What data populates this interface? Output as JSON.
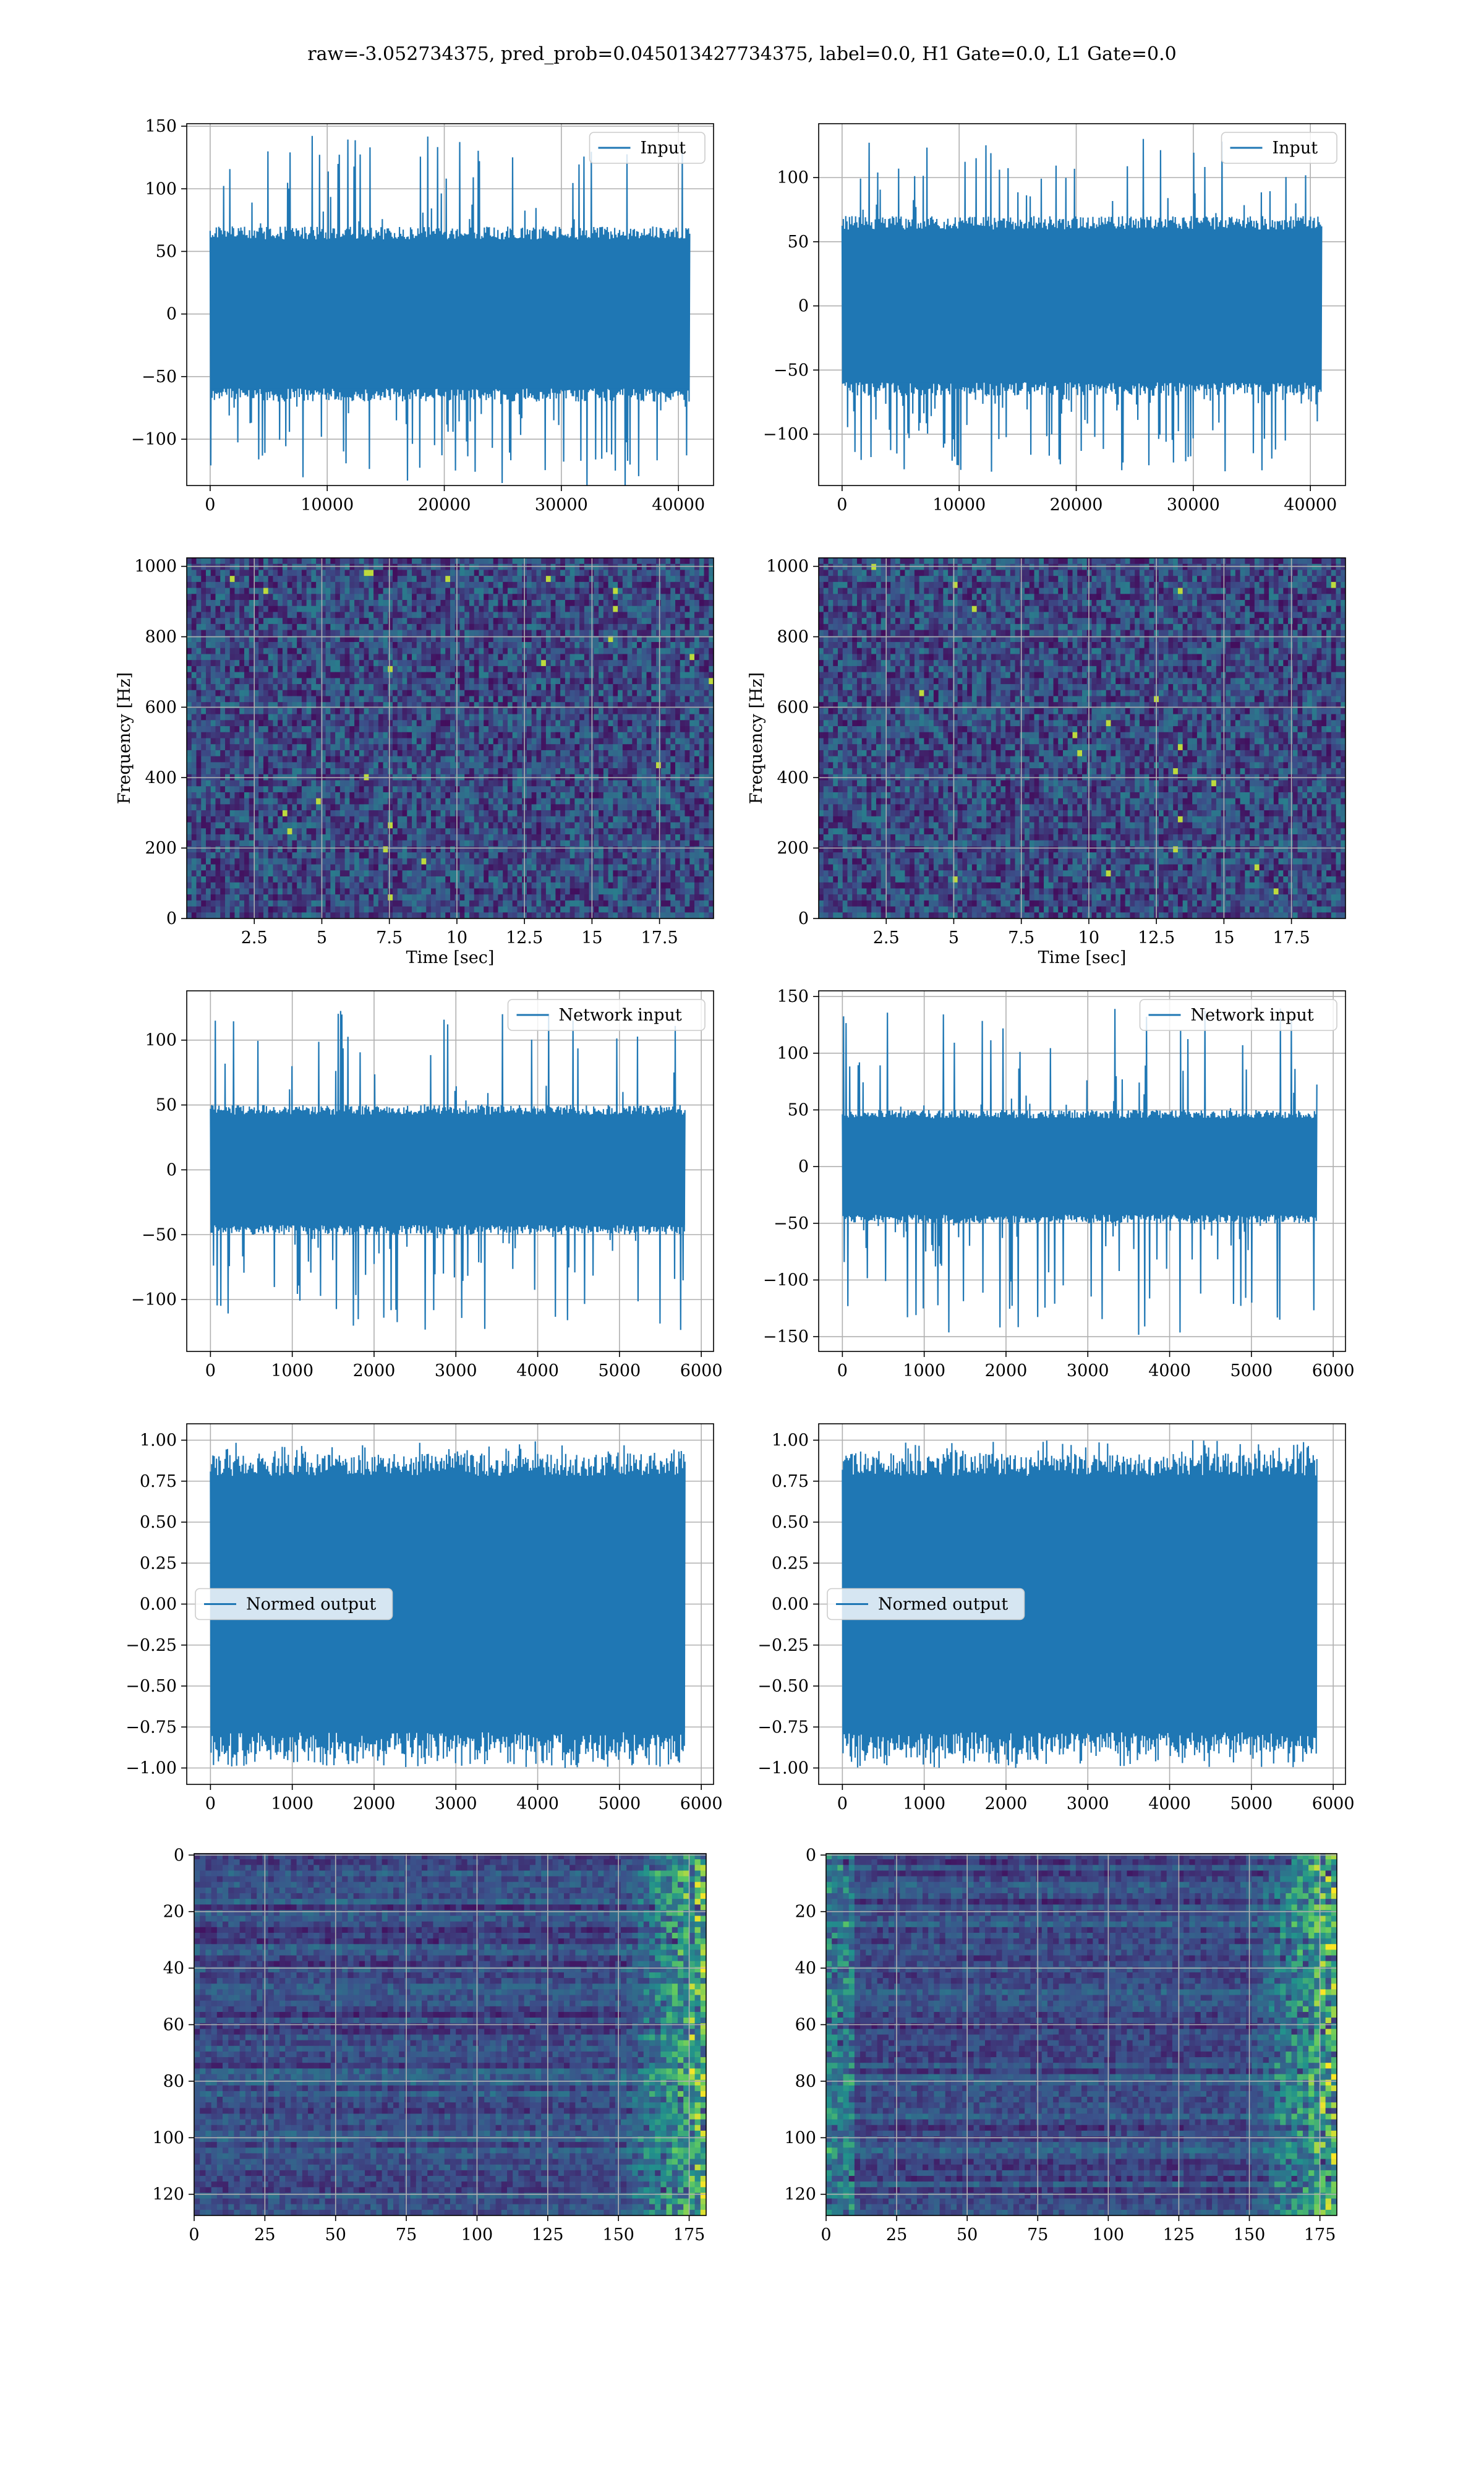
{
  "title": "raw=-3.052734375, pred_prob=0.045013427734375, label=0.0, H1 Gate=0.0, L1 Gate=0.0",
  "colors": {
    "series": "#1f77b4",
    "grid": "#b0b0b0",
    "axis": "#000000",
    "legend_bg": "#ffffff"
  },
  "chart_data": [
    {
      "id": "input-left",
      "type": "line",
      "series": [
        {
          "name": "Input"
        }
      ],
      "legend_loc": "upper-right",
      "x_ticks": [
        0,
        10000,
        20000,
        30000,
        40000
      ],
      "y_ticks": [
        -100,
        -50,
        0,
        50,
        100,
        150
      ],
      "xlim": [
        -2000,
        43000
      ],
      "ylim": [
        -137,
        152
      ],
      "signal": {
        "x_range": [
          0,
          40960
        ],
        "envelope": 70,
        "peak_max": 145,
        "peak_min": -125
      }
    },
    {
      "id": "input-right",
      "type": "line",
      "series": [
        {
          "name": "Input"
        }
      ],
      "legend_loc": "upper-right",
      "x_ticks": [
        0,
        10000,
        20000,
        30000,
        40000
      ],
      "y_ticks": [
        -100,
        -50,
        0,
        50,
        100
      ],
      "xlim": [
        -2000,
        43000
      ],
      "ylim": [
        -140,
        142
      ],
      "signal": {
        "x_range": [
          0,
          40960
        ],
        "envelope": 70,
        "peak_max": 133,
        "peak_min": -128
      }
    },
    {
      "id": "spectrogram-left",
      "type": "heatmap",
      "ylabel": "Frequency [Hz]",
      "xlabel": "Time [sec]",
      "x_ticks": [
        2.5,
        5.0,
        7.5,
        10.0,
        12.5,
        15.0,
        17.5
      ],
      "y_ticks": [
        0,
        200,
        400,
        600,
        800,
        1000
      ],
      "xlim": [
        0,
        19.5
      ],
      "ylim": [
        0,
        1024
      ],
      "colormap": "viridis"
    },
    {
      "id": "spectrogram-right",
      "type": "heatmap",
      "ylabel": "Frequency [Hz]",
      "xlabel": "Time [sec]",
      "x_ticks": [
        2.5,
        5.0,
        7.5,
        10.0,
        12.5,
        15.0,
        17.5
      ],
      "y_ticks": [
        0,
        200,
        400,
        600,
        800,
        1000
      ],
      "xlim": [
        0,
        19.5
      ],
      "ylim": [
        0,
        1024
      ],
      "colormap": "viridis"
    },
    {
      "id": "network-input-left",
      "type": "line",
      "series": [
        {
          "name": "Network input"
        }
      ],
      "legend_loc": "upper-right",
      "x_ticks": [
        0,
        1000,
        2000,
        3000,
        4000,
        5000,
        6000
      ],
      "y_ticks": [
        -100,
        -50,
        0,
        50,
        100
      ],
      "xlim": [
        -290,
        6150
      ],
      "ylim": [
        -140,
        138
      ],
      "signal": {
        "x_range": [
          0,
          5800
        ],
        "envelope": 50,
        "peak_max": 125,
        "peak_min": -125
      }
    },
    {
      "id": "network-input-right",
      "type": "line",
      "series": [
        {
          "name": "Network input"
        }
      ],
      "legend_loc": "upper-right",
      "x_ticks": [
        0,
        1000,
        2000,
        3000,
        4000,
        5000,
        6000
      ],
      "y_ticks": [
        -150,
        -100,
        -50,
        0,
        50,
        100,
        150
      ],
      "xlim": [
        -290,
        6150
      ],
      "ylim": [
        -163,
        155
      ],
      "signal": {
        "x_range": [
          0,
          5800
        ],
        "envelope": 50,
        "peak_max": 140,
        "peak_min": -150
      }
    },
    {
      "id": "normed-output-left",
      "type": "line",
      "series": [
        {
          "name": "Normed output"
        }
      ],
      "legend_loc": "center-left",
      "x_ticks": [
        0,
        1000,
        2000,
        3000,
        4000,
        5000,
        6000
      ],
      "y_ticks": [
        -1.0,
        -0.75,
        -0.5,
        -0.25,
        0.0,
        0.25,
        0.5,
        0.75,
        1.0
      ],
      "y_tick_labels": [
        "−1.00",
        "−0.75",
        "−0.50",
        "−0.25",
        "0.00",
        "0.25",
        "0.50",
        "0.75",
        "1.00"
      ],
      "xlim": [
        -290,
        6150
      ],
      "ylim": [
        -1.1,
        1.1
      ],
      "signal": {
        "x_range": [
          0,
          5800
        ],
        "envelope": 0.92,
        "peak_max": 1.0,
        "peak_min": -1.0
      }
    },
    {
      "id": "normed-output-right",
      "type": "line",
      "series": [
        {
          "name": "Normed output"
        }
      ],
      "legend_loc": "center-left",
      "x_ticks": [
        0,
        1000,
        2000,
        3000,
        4000,
        5000,
        6000
      ],
      "y_ticks": [
        -1.0,
        -0.75,
        -0.5,
        -0.25,
        0.0,
        0.25,
        0.5,
        0.75,
        1.0
      ],
      "y_tick_labels": [
        "−1.00",
        "−0.75",
        "−0.50",
        "−0.25",
        "0.00",
        "0.25",
        "0.50",
        "0.75",
        "1.00"
      ],
      "xlim": [
        -290,
        6150
      ],
      "ylim": [
        -1.1,
        1.1
      ],
      "signal": {
        "x_range": [
          0,
          5800
        ],
        "envelope": 0.92,
        "peak_max": 1.0,
        "peak_min": -1.0
      }
    },
    {
      "id": "feature-map-left",
      "type": "heatmap",
      "x_ticks": [
        0,
        25,
        50,
        75,
        100,
        125,
        150,
        175
      ],
      "y_ticks": [
        0,
        20,
        40,
        60,
        80,
        100,
        120
      ],
      "xlim": [
        0,
        181
      ],
      "ylim": [
        127.5,
        -0.5
      ],
      "y_inverted": true,
      "colormap": "viridis"
    },
    {
      "id": "feature-map-right",
      "type": "heatmap",
      "x_ticks": [
        0,
        25,
        50,
        75,
        100,
        125,
        150,
        175
      ],
      "y_ticks": [
        0,
        20,
        40,
        60,
        80,
        100,
        120
      ],
      "xlim": [
        0,
        181
      ],
      "ylim": [
        127.5,
        -0.5
      ],
      "y_inverted": true,
      "colormap": "viridis"
    }
  ]
}
